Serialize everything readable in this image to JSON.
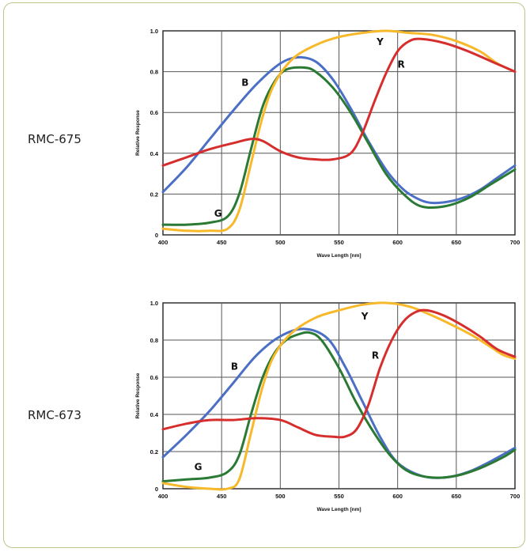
{
  "colors": {
    "B": "#4a6fc4",
    "G": "#2a7a34",
    "Y": "#f7b92a",
    "R": "#d62d2d",
    "grid": "#555555",
    "card_border": "#b9c88a"
  },
  "chart_data": [
    {
      "type": "line",
      "label": "RMC-675",
      "xlabel": "Wave Length [nm]",
      "ylabel": "Relative Response",
      "xlim": [
        400,
        700
      ],
      "ylim": [
        0,
        1
      ],
      "xticks": [
        "400",
        "450",
        "500",
        "550",
        "600",
        "650",
        "700"
      ],
      "yticks": [
        "0",
        "0.2",
        "0.4",
        "0.6",
        "0.8",
        "1.0"
      ],
      "grid": true,
      "series": [
        {
          "name": "B",
          "color_key": "B",
          "x": [
            400,
            420,
            440,
            460,
            480,
            500,
            515,
            530,
            545,
            560,
            575,
            590,
            600,
            610,
            625,
            640,
            655,
            670,
            685,
            700
          ],
          "y": [
            0.21,
            0.33,
            0.47,
            0.61,
            0.74,
            0.84,
            0.87,
            0.85,
            0.76,
            0.62,
            0.46,
            0.32,
            0.25,
            0.2,
            0.16,
            0.16,
            0.18,
            0.22,
            0.28,
            0.34
          ]
        },
        {
          "name": "G",
          "color_key": "G",
          "x": [
            400,
            420,
            440,
            455,
            465,
            475,
            485,
            495,
            505,
            520,
            530,
            545,
            560,
            575,
            590,
            605,
            620,
            640,
            660,
            680,
            700
          ],
          "y": [
            0.05,
            0.05,
            0.06,
            0.09,
            0.2,
            0.42,
            0.63,
            0.75,
            0.81,
            0.82,
            0.8,
            0.72,
            0.6,
            0.45,
            0.3,
            0.2,
            0.14,
            0.14,
            0.18,
            0.25,
            0.32
          ]
        },
        {
          "name": "Y",
          "color_key": "Y",
          "x": [
            400,
            420,
            440,
            455,
            465,
            475,
            485,
            495,
            510,
            530,
            550,
            570,
            590,
            610,
            630,
            650,
            670,
            685,
            700
          ],
          "y": [
            0.03,
            0.02,
            0.02,
            0.03,
            0.12,
            0.35,
            0.58,
            0.74,
            0.86,
            0.93,
            0.97,
            0.99,
            1.0,
            0.99,
            0.98,
            0.95,
            0.9,
            0.84,
            0.8
          ]
        },
        {
          "name": "R",
          "color_key": "R",
          "x": [
            400,
            420,
            440,
            460,
            475,
            485,
            500,
            515,
            530,
            545,
            560,
            570,
            580,
            590,
            600,
            610,
            620,
            640,
            660,
            680,
            700
          ],
          "y": [
            0.34,
            0.38,
            0.42,
            0.45,
            0.47,
            0.46,
            0.41,
            0.38,
            0.37,
            0.37,
            0.4,
            0.5,
            0.65,
            0.79,
            0.9,
            0.95,
            0.96,
            0.94,
            0.9,
            0.85,
            0.8
          ]
        }
      ],
      "curve_labels": [
        {
          "text": "B",
          "x": 470,
          "y": 0.73
        },
        {
          "text": "G",
          "x": 447,
          "y": 0.09
        },
        {
          "text": "Y",
          "x": 585,
          "y": 0.93
        },
        {
          "text": "R",
          "x": 603,
          "y": 0.82
        }
      ]
    },
    {
      "type": "line",
      "label": "RMC-673",
      "xlabel": "Wave Length [nm]",
      "ylabel": "Relative Response",
      "xlim": [
        400,
        700
      ],
      "ylim": [
        0,
        1
      ],
      "xticks": [
        "400",
        "450",
        "500",
        "550",
        "600",
        "650",
        "700"
      ],
      "yticks": [
        "0",
        "0.2",
        "0.4",
        "0.6",
        "0.8",
        "1.0"
      ],
      "grid": true,
      "series": [
        {
          "name": "B",
          "color_key": "B",
          "x": [
            400,
            420,
            440,
            460,
            480,
            500,
            520,
            540,
            555,
            570,
            585,
            600,
            620,
            640,
            660,
            680,
            700
          ],
          "y": [
            0.17,
            0.29,
            0.42,
            0.57,
            0.72,
            0.82,
            0.86,
            0.81,
            0.66,
            0.47,
            0.28,
            0.14,
            0.07,
            0.06,
            0.09,
            0.15,
            0.22
          ]
        },
        {
          "name": "G",
          "color_key": "G",
          "x": [
            400,
            420,
            440,
            455,
            465,
            475,
            485,
            495,
            505,
            515,
            525,
            535,
            550,
            565,
            580,
            595,
            610,
            630,
            650,
            670,
            690,
            700
          ],
          "y": [
            0.04,
            0.05,
            0.06,
            0.09,
            0.18,
            0.4,
            0.6,
            0.73,
            0.8,
            0.83,
            0.84,
            0.8,
            0.65,
            0.46,
            0.3,
            0.17,
            0.09,
            0.06,
            0.07,
            0.11,
            0.17,
            0.21
          ]
        },
        {
          "name": "Y",
          "color_key": "Y",
          "x": [
            400,
            420,
            440,
            455,
            465,
            475,
            485,
            495,
            510,
            530,
            550,
            570,
            590,
            610,
            630,
            650,
            665,
            680,
            690,
            700
          ],
          "y": [
            0.03,
            0.01,
            0.0,
            0.0,
            0.05,
            0.3,
            0.55,
            0.72,
            0.84,
            0.92,
            0.96,
            0.99,
            1.0,
            0.98,
            0.93,
            0.87,
            0.82,
            0.76,
            0.72,
            0.7
          ]
        },
        {
          "name": "R",
          "color_key": "R",
          "x": [
            400,
            420,
            440,
            460,
            480,
            500,
            515,
            530,
            545,
            555,
            565,
            575,
            585,
            595,
            605,
            615,
            625,
            640,
            655,
            670,
            685,
            700
          ],
          "y": [
            0.32,
            0.35,
            0.37,
            0.37,
            0.38,
            0.37,
            0.33,
            0.29,
            0.28,
            0.28,
            0.32,
            0.45,
            0.65,
            0.8,
            0.9,
            0.95,
            0.96,
            0.93,
            0.88,
            0.82,
            0.75,
            0.71
          ]
        }
      ],
      "curve_labels": [
        {
          "text": "B",
          "x": 461,
          "y": 0.64
        },
        {
          "text": "G",
          "x": 430,
          "y": 0.1
        },
        {
          "text": "Y",
          "x": 572,
          "y": 0.91
        },
        {
          "text": "R",
          "x": 581,
          "y": 0.7
        }
      ]
    }
  ]
}
